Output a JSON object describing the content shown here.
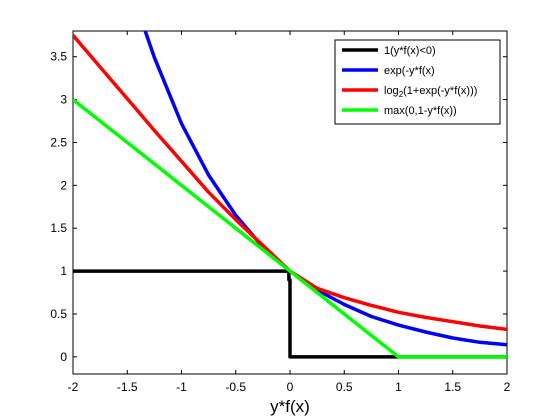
{
  "chart_data": {
    "type": "line",
    "title": "",
    "xlabel": "y*f(x)",
    "ylabel": "",
    "xlim": [
      -2,
      2
    ],
    "ylim": [
      -0.2,
      3.8
    ],
    "xticks": [
      -2,
      -1.5,
      -1,
      -0.5,
      0,
      0.5,
      1,
      1.5,
      2
    ],
    "xtick_labels": [
      "-2",
      "-1.5",
      "-1",
      "-0.5",
      "0",
      "0.5",
      "1",
      "1.5",
      "2"
    ],
    "yticks": [
      0,
      0.5,
      1,
      1.5,
      2,
      2.5,
      3,
      3.5
    ],
    "ytick_labels": [
      "0",
      "0.5",
      "1",
      "1.5",
      "2",
      "2.5",
      "3",
      "3.5"
    ],
    "grid": false,
    "legend_position": "top-right",
    "series": [
      {
        "name": "1(y*f(x)<0)",
        "label_main": "1(y*f(x)<0)",
        "label_sub": "",
        "label_tail": "",
        "color": "#000000",
        "x": [
          -2,
          -0.01,
          -0.01,
          0,
          0,
          2
        ],
        "y": [
          1,
          1,
          0.9,
          0.9,
          0,
          0
        ]
      },
      {
        "name": "exp(-y*f(x)",
        "label_main": "exp(-y*f(x)",
        "label_sub": "",
        "label_tail": "",
        "color": "#0000ff",
        "x": [
          -1.34,
          -1.25,
          -1,
          -0.75,
          -0.5,
          -0.25,
          0,
          0.25,
          0.5,
          0.75,
          1,
          1.25,
          1.5,
          1.75,
          2
        ],
        "y": [
          3.82,
          3.49,
          2.72,
          2.12,
          1.65,
          1.28,
          1.0,
          0.78,
          0.61,
          0.47,
          0.37,
          0.29,
          0.22,
          0.17,
          0.14
        ]
      },
      {
        "name": "log2(1+exp(-y*f(x)))",
        "label_main": "log",
        "label_sub": "2",
        "label_tail": "(1+exp(-y*f(x)))",
        "color": "#ff0000",
        "x": [
          -2,
          -1.75,
          -1.5,
          -1.25,
          -1,
          -0.75,
          -0.5,
          -0.25,
          0,
          0.25,
          0.5,
          0.75,
          1,
          1.25,
          1.5,
          1.75,
          2
        ],
        "y": [
          3.75,
          3.38,
          3.01,
          2.64,
          2.28,
          1.92,
          1.6,
          1.3,
          1.0,
          0.8,
          0.69,
          0.6,
          0.52,
          0.46,
          0.41,
          0.36,
          0.32
        ]
      },
      {
        "name": "max(0,1-y*f(x))",
        "label_main": "max(0,1-y*f(x))",
        "label_sub": "",
        "label_tail": "",
        "color": "#00ff00",
        "x": [
          -2,
          1,
          2
        ],
        "y": [
          3,
          0,
          0
        ]
      }
    ]
  }
}
